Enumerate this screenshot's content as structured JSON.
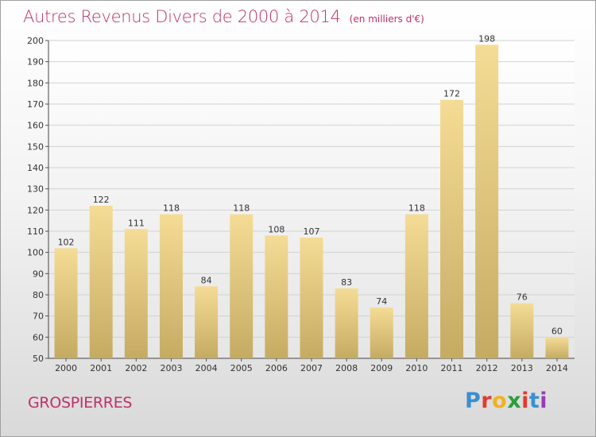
{
  "header": {
    "title": "Autres Revenus Divers de 2000 à 2014",
    "subtitle": "(en milliers d'€)"
  },
  "footer": {
    "town": "GROSPIERRES",
    "brand": [
      "P",
      "r",
      "o",
      "x",
      "i",
      "t",
      "i"
    ],
    "brand_colors": [
      "#3a8fd1",
      "#e53a2a",
      "#f2b21c",
      "#2a9e3a",
      "#e53a2a",
      "#3a8fd1",
      "#9a3ab8"
    ]
  },
  "chart_data": {
    "type": "bar",
    "title": "Autres Revenus Divers de 2000 à 2014",
    "subtitle": "(en milliers d'€)",
    "categories": [
      "2000",
      "2001",
      "2002",
      "2003",
      "2004",
      "2005",
      "2006",
      "2007",
      "2008",
      "2009",
      "2010",
      "2011",
      "2012",
      "2013",
      "2014"
    ],
    "values": [
      102,
      122,
      111,
      118,
      84,
      118,
      108,
      107,
      83,
      74,
      118,
      172,
      198,
      76,
      60
    ],
    "ylim": [
      50,
      200
    ],
    "yticks": [
      50,
      60,
      70,
      80,
      90,
      100,
      110,
      120,
      130,
      140,
      150,
      160,
      170,
      180,
      190,
      200
    ],
    "grid": true,
    "bar_color_top": "#f5dc96",
    "bar_color_bottom": "#c5ab62",
    "title_color": "#c0306a"
  }
}
